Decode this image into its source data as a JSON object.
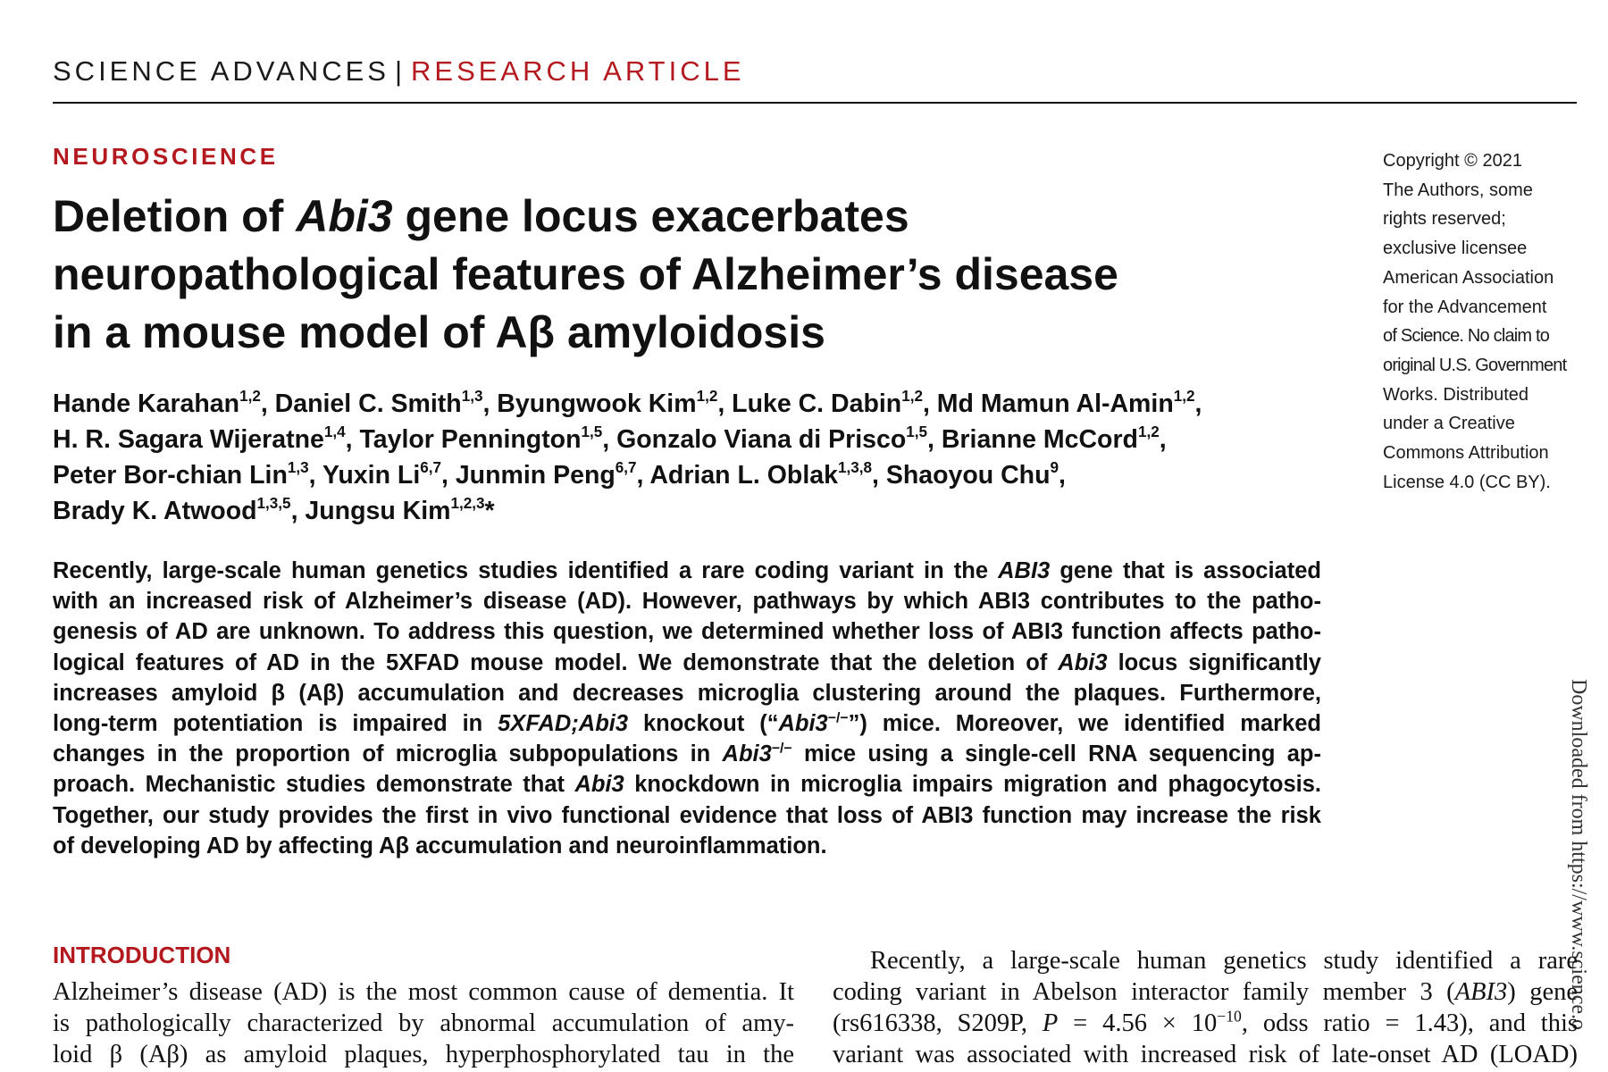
{
  "header": {
    "journal": "SCIENCE ADVANCES",
    "separator": "|",
    "article_type": "RESEARCH ARTICLE"
  },
  "section": "NEUROSCIENCE",
  "copyright_lines": [
    "Copyright © 2021",
    "The Authors, some",
    "rights reserved;",
    "exclusive licensee",
    "American Association",
    "for the Advancement",
    "of Science. No claim to",
    "original U.S. Government",
    "Works. Distributed",
    "under a Creative",
    "Commons Attribution",
    "License 4.0 (CC BY)."
  ],
  "title": {
    "l1_a": "Deletion of ",
    "l1_b": "Abi3",
    "l1_c": " gene locus exacerbates",
    "l2": "neuropathological features of Alzheimer’s disease",
    "l3": "in a mouse model of Aβ amyloidosis"
  },
  "authors": {
    "a1": "Hande Karahan",
    "a1s": "1,2",
    "a2": ", Daniel C. Smith",
    "a2s": "1,3",
    "a3": ", Byungwook Kim",
    "a3s": "1,2",
    "a4": ", Luke C. Dabin",
    "a4s": "1,2",
    "a5": ", Md Mamun Al-Amin",
    "a5s": "1,2",
    "a5e": ",",
    "a6": "H. R. Sagara Wijeratne",
    "a6s": "1,4",
    "a7": ", Taylor Pennington",
    "a7s": "1,5",
    "a8": ", Gonzalo Viana di Prisco",
    "a8s": "1,5",
    "a9": ", Brianne McCord",
    "a9s": "1,2",
    "a9e": ",",
    "a10": "Peter Bor-chian Lin",
    "a10s": "1,3",
    "a11": ", Yuxin Li",
    "a11s": "6,7",
    "a12": ", Junmin Peng",
    "a12s": "6,7",
    "a13": ", Adrian L. Oblak",
    "a13s": "1,3,8",
    "a14": ", Shaoyou Chu",
    "a14s": "9",
    "a14e": ",",
    "a15": "Brady K. Atwood",
    "a15s": "1,3,5",
    "a16": ", Jungsu Kim",
    "a16s": "1,2,3",
    "a16e": "*"
  },
  "abstract": {
    "l1a": "Recently, large-scale human genetics studies identified a rare coding variant in the ",
    "l1b": "ABI3",
    "l1c": " gene that is associated",
    "l2": "with an increased risk of Alzheimer’s disease (AD). However, pathways by which ABI3 contributes to the patho-",
    "l3": "genesis of AD are unknown. To address this question, we determined whether loss of ABI3 function affects patho-",
    "l4a": "logical features of AD in the 5XFAD mouse model. We demonstrate that the deletion of ",
    "l4b": "Abi3",
    "l4c": " locus significantly",
    "l5": "increases amyloid β (Aβ) accumulation and decreases microglia clustering around the plaques. Furthermore,",
    "l6a": "long-term potentiation is impaired in ",
    "l6b": "5XFAD;Abi3",
    "l6c": " knockout (“",
    "l6d": "Abi3",
    "l6e": "−/−",
    "l6f": "”) mice. Moreover, we identified marked",
    "l7a": "changes in the proportion of microglia subpopulations in ",
    "l7b": "Abi3",
    "l7c": "−/−",
    "l7d": " mice using a single-cell RNA sequencing ap-",
    "l8a": "proach. Mechanistic studies demonstrate that ",
    "l8b": "Abi3",
    "l8c": " knockdown in microglia impairs migration and phagocytosis.",
    "l9": "Together, our study provides the first in vivo functional evidence that loss of ABI3 function may increase the risk",
    "l10": "of developing AD by affecting Aβ accumulation and neuroinflammation."
  },
  "side_note": "Downloaded from https://www.science.o",
  "intro": {
    "heading": "INTRODUCTION",
    "left_l1": "Alzheimer’s disease (AD) is the most common cause of dementia. It",
    "left_l2": "is pathologically characterized by abnormal accumulation of amy-",
    "left_l3": "loid β (Aβ) as amyloid plaques, hyperphosphorylated tau in the",
    "right_l1": "Recently, a large-scale human genetics study identified a rare",
    "right_l2a": "coding variant in Abelson interactor family member 3 (",
    "right_l2b": "ABI3",
    "right_l2c": ") gene",
    "right_l3a": "(rs616338, S209P, ",
    "right_l3b": "P",
    "right_l3c": " = 4.56 × 10",
    "right_l3d": "−10",
    "right_l3e": ", odss ratio = 1.43), and this",
    "right_l4": "variant was associated with increased risk of late-onset AD (LOAD)"
  }
}
